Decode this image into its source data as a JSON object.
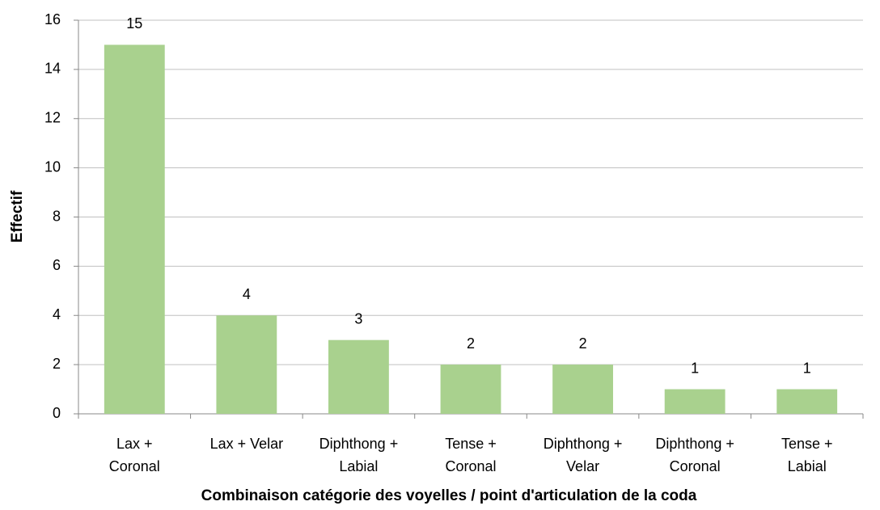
{
  "chart_data": {
    "type": "bar",
    "categories": [
      [
        "Lax +",
        "Coronal"
      ],
      [
        "Lax + Velar"
      ],
      [
        "Diphthong +",
        "Labial"
      ],
      [
        "Tense +",
        "Coronal"
      ],
      [
        "Diphthong +",
        "Velar"
      ],
      [
        "Diphthong +",
        "Coronal"
      ],
      [
        "Tense +",
        "Labial"
      ]
    ],
    "values": [
      15,
      4,
      3,
      2,
      2,
      1,
      1
    ],
    "color": "#a9d18e",
    "ylim": [
      0,
      16
    ],
    "yticks": [
      0,
      2,
      4,
      6,
      8,
      10,
      12,
      14,
      16
    ],
    "grid": true,
    "x_label": "Combinaison catégorie des voyelles / point d'articulation de la coda",
    "y_label": "Effectif"
  }
}
